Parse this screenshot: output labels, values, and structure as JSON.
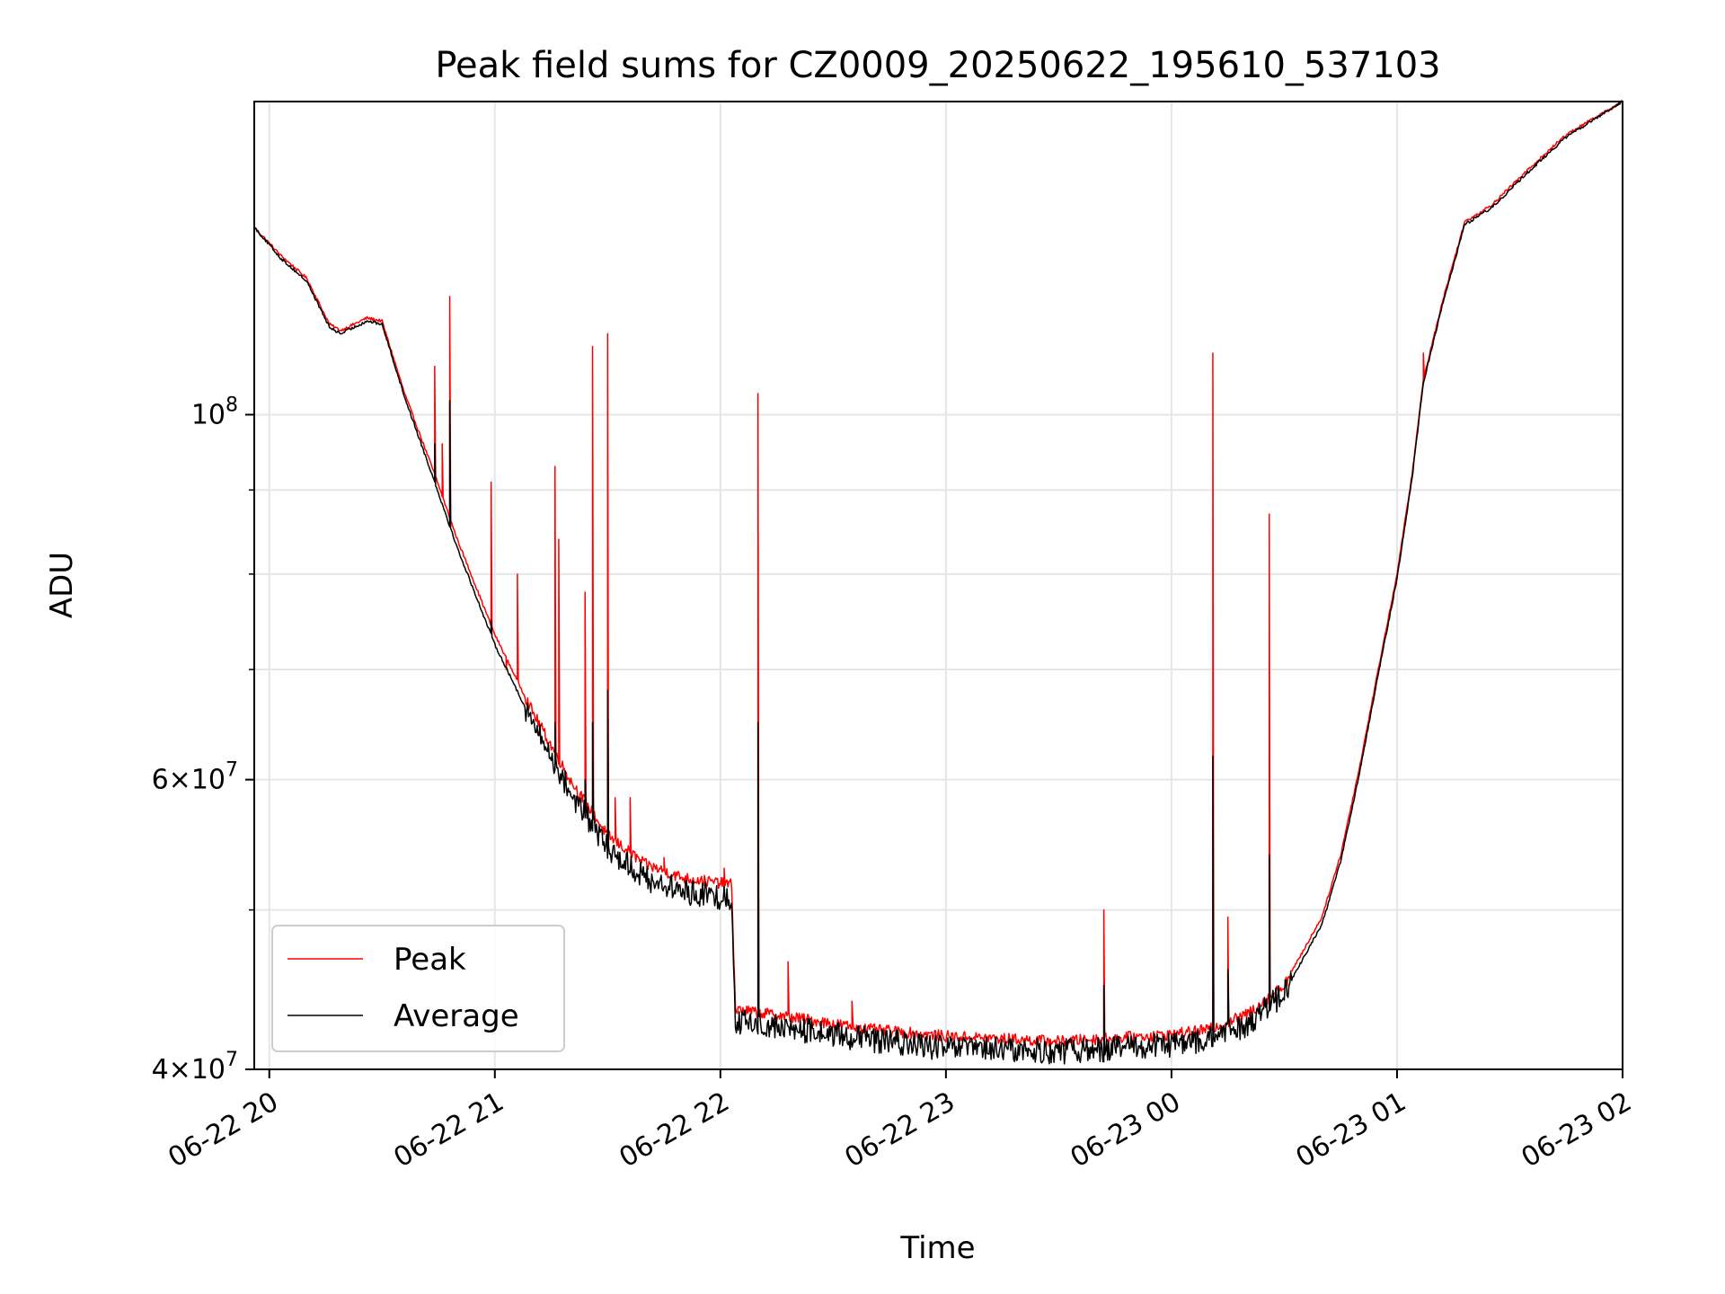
{
  "chart_data": {
    "type": "line",
    "title": "Peak field sums for CZ0009_20250622_195610_537103",
    "xlabel": "Time",
    "ylabel": "ADU",
    "y_scale": "log",
    "grid": true,
    "legend_position": "lower-left",
    "xlim": [
      "2025-06-22 19:56",
      "2025-06-23 02:00"
    ],
    "ylim": [
      40000000,
      155000000
    ],
    "x_ticks": [
      {
        "time": "2025-06-22 20:00",
        "label": "06-22 20"
      },
      {
        "time": "2025-06-22 21:00",
        "label": "06-22 21"
      },
      {
        "time": "2025-06-22 22:00",
        "label": "06-22 22"
      },
      {
        "time": "2025-06-22 23:00",
        "label": "06-22 23"
      },
      {
        "time": "2025-06-23 00:00",
        "label": "06-23 00"
      },
      {
        "time": "2025-06-23 01:00",
        "label": "06-23 01"
      },
      {
        "time": "2025-06-23 02:00",
        "label": "06-23 02"
      }
    ],
    "y_major_ticks": [
      {
        "value": 40000000,
        "base": "4",
        "exp": "7"
      },
      {
        "value": 60000000,
        "base": "6",
        "exp": "7"
      },
      {
        "value": 100000000,
        "base": "",
        "exp": "8"
      }
    ],
    "y_minor_ticks": [
      50000000,
      70000000,
      80000000,
      90000000
    ],
    "series": [
      {
        "name": "Peak",
        "color": "#ff0000",
        "baseline": [
          {
            "t": "2025-06-22 19:56",
            "v": 130000000
          },
          {
            "t": "2025-06-22 20:03",
            "v": 125000000
          },
          {
            "t": "2025-06-22 20:10",
            "v": 121000000
          },
          {
            "t": "2025-06-22 20:16",
            "v": 113500000
          },
          {
            "t": "2025-06-22 20:19",
            "v": 112500000
          },
          {
            "t": "2025-06-22 20:26",
            "v": 114500000
          },
          {
            "t": "2025-06-22 20:30",
            "v": 114000000
          },
          {
            "t": "2025-06-22 20:36",
            "v": 103000000
          },
          {
            "t": "2025-06-22 20:44",
            "v": 92000000
          },
          {
            "t": "2025-06-22 20:50",
            "v": 84000000
          },
          {
            "t": "2025-06-22 21:00",
            "v": 73500000
          },
          {
            "t": "2025-06-22 21:10",
            "v": 66000000
          },
          {
            "t": "2025-06-22 21:20",
            "v": 60000000
          },
          {
            "t": "2025-06-22 21:30",
            "v": 55500000
          },
          {
            "t": "2025-06-22 21:40",
            "v": 53300000
          },
          {
            "t": "2025-06-22 21:50",
            "v": 52300000
          },
          {
            "t": "2025-06-22 22:03",
            "v": 51800000
          },
          {
            "t": "2025-06-22 22:04",
            "v": 43500000
          },
          {
            "t": "2025-06-22 22:20",
            "v": 43000000
          },
          {
            "t": "2025-06-22 22:40",
            "v": 42300000
          },
          {
            "t": "2025-06-22 23:00",
            "v": 41900000
          },
          {
            "t": "2025-06-22 23:30",
            "v": 41600000
          },
          {
            "t": "2025-06-23 00:00",
            "v": 42000000
          },
          {
            "t": "2025-06-23 00:10",
            "v": 42300000
          },
          {
            "t": "2025-06-23 00:20",
            "v": 43200000
          },
          {
            "t": "2025-06-23 00:30",
            "v": 45000000
          },
          {
            "t": "2025-06-23 00:40",
            "v": 49500000
          },
          {
            "t": "2025-06-23 00:45",
            "v": 54000000
          },
          {
            "t": "2025-06-23 00:50",
            "v": 61000000
          },
          {
            "t": "2025-06-23 00:55",
            "v": 70000000
          },
          {
            "t": "2025-06-23 01:00",
            "v": 80000000
          },
          {
            "t": "2025-06-23 01:04",
            "v": 92000000
          },
          {
            "t": "2025-06-23 01:07",
            "v": 105000000
          },
          {
            "t": "2025-06-23 01:12",
            "v": 117000000
          },
          {
            "t": "2025-06-23 01:18",
            "v": 131000000
          },
          {
            "t": "2025-06-23 01:25",
            "v": 134000000
          },
          {
            "t": "2025-06-23 01:35",
            "v": 141000000
          },
          {
            "t": "2025-06-23 01:45",
            "v": 148000000
          },
          {
            "t": "2025-06-23 02:00",
            "v": 155000000
          }
        ],
        "spikes": [
          {
            "t": "2025-06-22 20:44",
            "v": 107000000
          },
          {
            "t": "2025-06-22 20:46",
            "v": 96000000
          },
          {
            "t": "2025-06-22 20:48",
            "v": 118000000
          },
          {
            "t": "2025-06-22 20:59",
            "v": 91000000
          },
          {
            "t": "2025-06-22 21:03",
            "v": 70000000
          },
          {
            "t": "2025-06-22 21:06",
            "v": 80000000
          },
          {
            "t": "2025-06-22 21:16",
            "v": 93000000
          },
          {
            "t": "2025-06-22 21:17",
            "v": 84000000
          },
          {
            "t": "2025-06-22 21:24",
            "v": 78000000
          },
          {
            "t": "2025-06-22 21:26",
            "v": 110000000
          },
          {
            "t": "2025-06-22 21:30",
            "v": 112000000
          },
          {
            "t": "2025-06-22 21:32",
            "v": 58500000
          },
          {
            "t": "2025-06-22 21:36",
            "v": 58500000
          },
          {
            "t": "2025-06-22 21:45",
            "v": 53800000
          },
          {
            "t": "2025-06-22 22:01",
            "v": 53000000
          },
          {
            "t": "2025-06-22 22:10",
            "v": 103000000
          },
          {
            "t": "2025-06-22 22:18",
            "v": 46500000
          },
          {
            "t": "2025-06-22 22:35",
            "v": 44000000
          },
          {
            "t": "2025-06-22 23:42",
            "v": 50000000
          },
          {
            "t": "2025-06-23 00:11",
            "v": 109000000
          },
          {
            "t": "2025-06-23 00:15",
            "v": 49500000
          },
          {
            "t": "2025-06-23 00:26",
            "v": 87000000
          },
          {
            "t": "2025-06-23 01:07",
            "v": 109000000
          }
        ]
      },
      {
        "name": "Average",
        "color": "#000000",
        "baseline": [
          {
            "t": "2025-06-22 19:56",
            "v": 130000000
          },
          {
            "t": "2025-06-22 20:03",
            "v": 124500000
          },
          {
            "t": "2025-06-22 20:10",
            "v": 120500000
          },
          {
            "t": "2025-06-22 20:16",
            "v": 113000000
          },
          {
            "t": "2025-06-22 20:19",
            "v": 112000000
          },
          {
            "t": "2025-06-22 20:26",
            "v": 114000000
          },
          {
            "t": "2025-06-22 20:30",
            "v": 113500000
          },
          {
            "t": "2025-06-22 20:36",
            "v": 102500000
          },
          {
            "t": "2025-06-22 20:44",
            "v": 91000000
          },
          {
            "t": "2025-06-22 20:50",
            "v": 83000000
          },
          {
            "t": "2025-06-22 21:00",
            "v": 72500000
          },
          {
            "t": "2025-06-22 21:10",
            "v": 65000000
          },
          {
            "t": "2025-06-22 21:20",
            "v": 59000000
          },
          {
            "t": "2025-06-22 21:30",
            "v": 54500000
          },
          {
            "t": "2025-06-22 21:40",
            "v": 52300000
          },
          {
            "t": "2025-06-22 21:50",
            "v": 51300000
          },
          {
            "t": "2025-06-22 22:03",
            "v": 50800000
          },
          {
            "t": "2025-06-22 22:04",
            "v": 42800000
          },
          {
            "t": "2025-06-22 22:20",
            "v": 42300000
          },
          {
            "t": "2025-06-22 22:40",
            "v": 41700000
          },
          {
            "t": "2025-06-22 23:00",
            "v": 41200000
          },
          {
            "t": "2025-06-22 23:30",
            "v": 41000000
          },
          {
            "t": "2025-06-23 00:00",
            "v": 41400000
          },
          {
            "t": "2025-06-23 00:10",
            "v": 41700000
          },
          {
            "t": "2025-06-23 00:20",
            "v": 42600000
          },
          {
            "t": "2025-06-23 00:30",
            "v": 44500000
          },
          {
            "t": "2025-06-23 00:40",
            "v": 49000000
          },
          {
            "t": "2025-06-23 00:45",
            "v": 53500000
          },
          {
            "t": "2025-06-23 00:50",
            "v": 60500000
          },
          {
            "t": "2025-06-23 00:55",
            "v": 69500000
          },
          {
            "t": "2025-06-23 01:00",
            "v": 79500000
          },
          {
            "t": "2025-06-23 01:04",
            "v": 91500000
          },
          {
            "t": "2025-06-23 01:07",
            "v": 104500000
          },
          {
            "t": "2025-06-23 01:12",
            "v": 116500000
          },
          {
            "t": "2025-06-23 01:18",
            "v": 130500000
          },
          {
            "t": "2025-06-23 01:25",
            "v": 133500000
          },
          {
            "t": "2025-06-23 01:35",
            "v": 140500000
          },
          {
            "t": "2025-06-23 01:45",
            "v": 147500000
          },
          {
            "t": "2025-06-23 02:00",
            "v": 155000000
          }
        ],
        "spikes": [
          {
            "t": "2025-06-22 20:44",
            "v": 96000000
          },
          {
            "t": "2025-06-22 20:48",
            "v": 102000000
          },
          {
            "t": "2025-06-22 20:59",
            "v": 75000000
          },
          {
            "t": "2025-06-22 21:06",
            "v": 68000000
          },
          {
            "t": "2025-06-22 21:16",
            "v": 65000000
          },
          {
            "t": "2025-06-22 21:24",
            "v": 60000000
          },
          {
            "t": "2025-06-22 21:26",
            "v": 65000000
          },
          {
            "t": "2025-06-22 21:30",
            "v": 68000000
          },
          {
            "t": "2025-06-22 22:10",
            "v": 65000000
          },
          {
            "t": "2025-06-22 23:42",
            "v": 45000000
          },
          {
            "t": "2025-06-23 00:11",
            "v": 62000000
          },
          {
            "t": "2025-06-23 00:15",
            "v": 46000000
          },
          {
            "t": "2025-06-23 00:26",
            "v": 54000000
          }
        ]
      }
    ]
  }
}
